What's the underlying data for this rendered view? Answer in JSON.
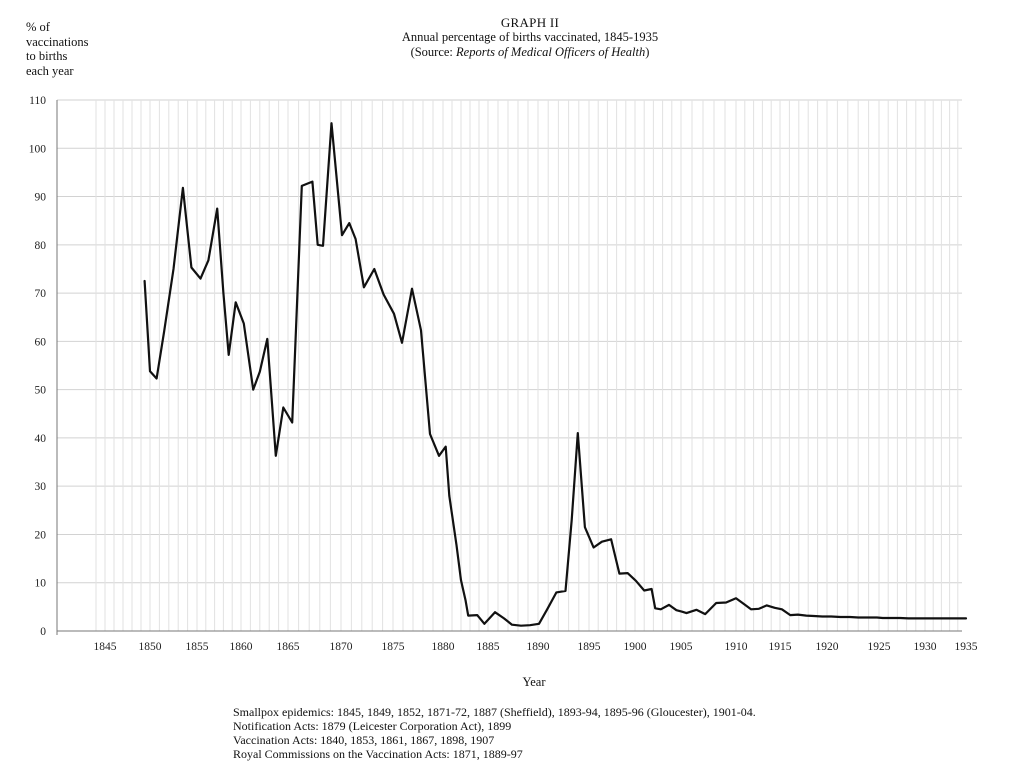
{
  "chart_data": {
    "type": "line",
    "ylabel_lines": [
      "% of",
      "vaccinations",
      "to births",
      "each year"
    ],
    "title": "GRAPH II",
    "subtitle": "Annual percentage of births vaccinated, 1845-1935",
    "source_prefix": "(Source: ",
    "source_italic": "Reports of Medical Officers of Health",
    "source_suffix": ")",
    "xlabel": "Year",
    "x_ticks": [
      "1845",
      "1850",
      "1855",
      "1860",
      "1865",
      "1870",
      "1875",
      "1880",
      "1885",
      "1890",
      "1895",
      "1900",
      "1905",
      "1910",
      "1915",
      "1920",
      "1925",
      "1930",
      "1935"
    ],
    "y_ticks": [
      0,
      10,
      20,
      30,
      40,
      50,
      60,
      70,
      80,
      90,
      100,
      110
    ],
    "ylim": [
      0,
      110
    ],
    "grid": true,
    "x": [
      1849.4,
      1850.0,
      1850.7,
      1851.5,
      1852.5,
      1853.5,
      1854.4,
      1855.4,
      1856.3,
      1857.3,
      1858.0,
      1858.6,
      1859.4,
      1860.3,
      1861.3,
      1862.0,
      1862.8,
      1863.7,
      1864.5,
      1865.4,
      1866.3,
      1867.3,
      1867.8,
      1868.3,
      1869.1,
      1870.1,
      1870.8,
      1871.4,
      1872.2,
      1873.2,
      1874.1,
      1875.1,
      1875.9,
      1876.9,
      1877.8,
      1878.7,
      1879.6,
      1880.3,
      1880.7,
      1881.5,
      1882.0,
      1882.5,
      1882.8,
      1883.8,
      1884.6,
      1885.0,
      1885.7,
      1886.6,
      1887.4,
      1888.3,
      1889.2,
      1890.1,
      1890.9,
      1891.8,
      1892.7,
      1893.3,
      1893.9,
      1894.6,
      1895.5,
      1896.4,
      1897.4,
      1898.3,
      1899.2,
      1900.1,
      1901.0,
      1901.8,
      1902.2,
      1902.8,
      1903.7,
      1904.5,
      1905.1,
      1905.5,
      1906.4,
      1907.2,
      1908.2,
      1909.1,
      1910.0,
      1910.9,
      1911.7,
      1912.6,
      1913.5,
      1914.4,
      1915.2,
      1916.1,
      1916.9,
      1917.8,
      1918.6,
      1919.5,
      1920.4,
      1921.3,
      1922.2,
      1923.0,
      1923.9,
      1924.8,
      1925.4,
      1926.3,
      1927.3,
      1928.2,
      1929.0,
      1929.7,
      1930.6,
      1931.4,
      1932.3,
      1933.2,
      1934.2,
      1935.0
    ],
    "values": [
      72.5,
      53.8,
      52.3,
      62.0,
      75.0,
      91.8,
      75.3,
      73.0,
      76.8,
      87.5,
      70.0,
      57.2,
      68.1,
      63.7,
      50.0,
      53.7,
      60.5,
      36.3,
      46.3,
      43.2,
      92.2,
      93.1,
      80.0,
      79.8,
      105.2,
      82.0,
      84.5,
      81.2,
      71.2,
      75.0,
      69.7,
      65.7,
      59.7,
      70.9,
      62.3,
      40.8,
      36.3,
      38.2,
      28.0,
      17.8,
      10.5,
      6.4,
      3.2,
      3.3,
      1.5,
      2.3,
      3.9,
      2.6,
      1.3,
      1.1,
      1.2,
      1.5,
      4.5,
      8.0,
      8.3,
      23.0,
      41.0,
      21.5,
      17.3,
      18.5,
      19.0,
      11.9,
      12.0,
      10.4,
      8.4,
      8.7,
      4.7,
      4.5,
      5.4,
      4.3,
      4.0,
      3.7,
      4.4,
      3.5,
      5.8,
      5.9,
      6.8,
      5.6,
      4.5,
      4.6,
      5.3,
      4.8,
      4.5,
      3.3,
      3.4,
      3.2,
      3.1,
      3.0,
      3.0,
      2.9,
      2.9,
      2.8,
      2.8,
      2.8,
      2.7,
      2.7,
      2.7,
      2.6,
      2.6,
      2.6,
      2.6,
      2.6,
      2.6,
      2.6,
      2.6,
      2.6
    ],
    "notes": [
      "Smallpox epidemics: 1845, 1849, 1852, 1871-72, 1887 (Sheffield), 1893-94, 1895-96 (Gloucester), 1901-04.",
      "Notification Acts: 1879 (Leicester Corporation Act), 1899",
      "Vaccination Acts: 1840, 1853, 1861, 1867, 1898, 1907",
      "Royal Commissions on the Vaccination Acts: 1871, 1889-97"
    ]
  }
}
